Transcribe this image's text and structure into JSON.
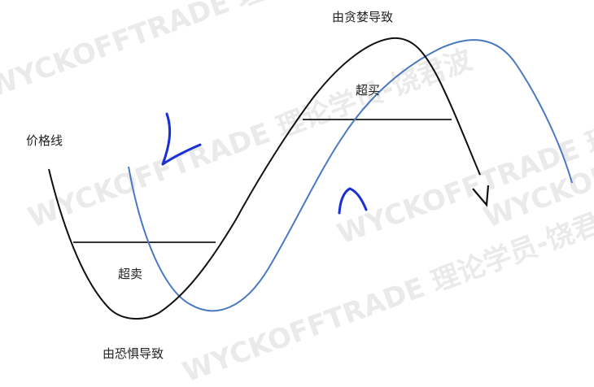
{
  "labels": {
    "price_line": "价格线",
    "greed": "由贪婪导致",
    "overbought": "超买",
    "oversold": "超卖",
    "fear": "由恐惧导致"
  },
  "watermark": "WYCKOFFTRADE 理论学员-饶君波",
  "colors": {
    "price_curve": "#111111",
    "lagging_curve": "#4a78c0",
    "level_line": "#333333",
    "hand_arrows": "#1a2fd6",
    "watermark": "#d9d9d9"
  }
}
